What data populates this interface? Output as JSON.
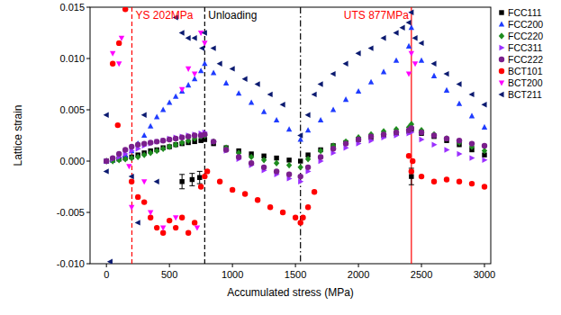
{
  "chart_data": {
    "type": "scatter",
    "x_label": "Accumulated stress (MPa)",
    "y_label": "Lattice strain",
    "xlim": [
      -130,
      3050
    ],
    "ylim": [
      -0.01,
      0.015
    ],
    "xticks": [
      0,
      500,
      1000,
      1500,
      2000,
      2500,
      3000
    ],
    "yticks": [
      {
        "value": -0.01,
        "label": "-0.010"
      },
      -0.005,
      {
        "value": 0,
        "label": "0.000"
      },
      0.005,
      {
        "value": 0.01,
        "label": "0.010"
      },
      0.015
    ],
    "grid": false,
    "legend": "right",
    "annotations": [
      {
        "text": "YS 202MPa",
        "x": 202,
        "color": "#ff0000",
        "line_style": "dashed"
      },
      {
        "text": "Unloading",
        "x": 780,
        "color": "#000000",
        "line_style": "dashed"
      },
      {
        "x": 1540,
        "color": "#000000",
        "line_style": "dashdot"
      },
      {
        "text": "UTS 877MPa",
        "x": 2420,
        "color": "#ff0000",
        "line_style": "solid"
      }
    ],
    "series": [
      {
        "name": "FCC111",
        "color": "#000000",
        "marker": "square",
        "x": [
          600,
          680,
          740,
          2420,
          0,
          50,
          100,
          150,
          200,
          250,
          300,
          350,
          400,
          450,
          500,
          550,
          600,
          650,
          700,
          750,
          780,
          850,
          950,
          1050,
          1150,
          1250,
          1350,
          1450,
          1540,
          1600,
          1700,
          1800,
          1900,
          2000,
          2100,
          2200,
          2300,
          2400,
          2420,
          2500,
          2600,
          2700,
          2800,
          2900,
          3000
        ],
        "values": [
          -0.002,
          -0.0018,
          -0.0016,
          -0.0015,
          0,
          0.0001,
          0.0002,
          0.0003,
          0.0004,
          0.0006,
          0.0008,
          0.001,
          0.0011,
          0.0013,
          0.0014,
          0.0016,
          0.0017,
          0.0018,
          0.0019,
          0.002,
          0.0021,
          0.0017,
          0.0013,
          0.001,
          0.0007,
          0.0005,
          0.0003,
          0.0001,
          0,
          0.0006,
          0.0011,
          0.0015,
          0.0018,
          0.0021,
          0.0023,
          0.0025,
          0.0027,
          0.0029,
          0.0031,
          0.0027,
          0.0024,
          0.002,
          0.0016,
          0.0011,
          0.0006
        ],
        "errors": [
          0.0007,
          0.0006,
          0.0006,
          0.0008,
          null,
          null,
          null,
          null,
          null,
          null,
          null,
          null,
          null,
          null,
          null,
          null,
          null,
          null,
          null,
          null,
          null,
          null,
          null,
          null,
          null,
          null,
          null,
          null,
          null,
          null,
          null,
          null,
          null,
          null,
          null,
          null,
          null,
          null,
          null,
          null,
          null,
          null,
          null,
          null,
          null
        ]
      },
      {
        "name": "FCC200",
        "color": "#1f3cff",
        "marker": "triangle-up",
        "x": [
          0,
          50,
          100,
          150,
          200,
          250,
          300,
          350,
          400,
          450,
          500,
          550,
          600,
          650,
          700,
          750,
          780,
          850,
          950,
          1050,
          1150,
          1250,
          1350,
          1450,
          1540,
          1600,
          1700,
          1800,
          1900,
          2000,
          2100,
          2200,
          2300,
          2400,
          2420,
          2500,
          2600,
          2700,
          2800,
          2900,
          3000
        ],
        "values": [
          0,
          0.0001,
          0.0003,
          0.0006,
          0.001,
          0.0017,
          0.0025,
          0.0034,
          0.0043,
          0.005,
          0.0057,
          0.0063,
          0.0068,
          0.0074,
          0.008,
          0.0088,
          0.0095,
          0.0086,
          0.0076,
          0.0066,
          0.0057,
          0.0048,
          0.004,
          0.0031,
          0.0021,
          0.003,
          0.004,
          0.005,
          0.006,
          0.0068,
          0.0077,
          0.0087,
          0.0098,
          0.0112,
          0.013,
          0.0098,
          0.0083,
          0.0069,
          0.0056,
          0.0044,
          0.0033
        ]
      },
      {
        "name": "FCC220",
        "color": "#1e8c1e",
        "marker": "diamond",
        "x": [
          0,
          50,
          100,
          150,
          200,
          250,
          300,
          350,
          400,
          450,
          500,
          550,
          600,
          650,
          700,
          750,
          780,
          850,
          950,
          1050,
          1150,
          1250,
          1350,
          1450,
          1540,
          1600,
          1700,
          1800,
          1900,
          2000,
          2100,
          2200,
          2300,
          2400,
          2420,
          2500,
          2600,
          2700,
          2800,
          2900,
          3000
        ],
        "values": [
          0,
          0,
          0.0001,
          0.0002,
          0.0003,
          0.0004,
          0.0006,
          0.0008,
          0.001,
          0.0012,
          0.0014,
          0.0016,
          0.0018,
          0.002,
          0.0022,
          0.0024,
          0.0025,
          0.0019,
          0.0013,
          0.0008,
          0.0004,
          0.0001,
          -0.0002,
          -0.0004,
          -0.0006,
          0.0002,
          0.001,
          0.0015,
          0.0019,
          0.0023,
          0.0026,
          0.0029,
          0.0031,
          0.0033,
          0.0036,
          0.003,
          0.0026,
          0.0022,
          0.0018,
          0.0014,
          0.001
        ]
      },
      {
        "name": "FCC311",
        "color": "#9b30ff",
        "marker": "triangle-right",
        "x": [
          0,
          50,
          100,
          150,
          200,
          250,
          300,
          350,
          400,
          450,
          500,
          550,
          600,
          650,
          700,
          750,
          780,
          850,
          950,
          1050,
          1150,
          1250,
          1350,
          1450,
          1540,
          1600,
          1700,
          1800,
          1900,
          2000,
          2100,
          2200,
          2300,
          2400,
          2420,
          2500,
          2600,
          2700,
          2800,
          2900,
          3000
        ],
        "values": [
          0,
          0.0002,
          0.0004,
          0.0007,
          0.001,
          0.0012,
          0.0015,
          0.0017,
          0.0019,
          0.002,
          0.0022,
          0.0023,
          0.0024,
          0.0025,
          0.0026,
          0.0027,
          0.0028,
          0.0019,
          0.001,
          0.0002,
          -0.0004,
          -0.0009,
          -0.0013,
          -0.0017,
          -0.002,
          -0.001,
          0,
          0.0008,
          0.0013,
          0.0017,
          0.002,
          0.0023,
          0.0025,
          0.0027,
          0.0028,
          0.0021,
          0.0016,
          0.0011,
          0.0007,
          0.0003,
          0.0001
        ]
      },
      {
        "name": "FCC222",
        "color": "#7a1f8c",
        "marker": "circle",
        "x": [
          0,
          50,
          100,
          150,
          200,
          250,
          300,
          350,
          400,
          450,
          500,
          550,
          600,
          650,
          700,
          750,
          780,
          850,
          950,
          1050,
          1150,
          1250,
          1350,
          1450,
          1540,
          1600,
          1700,
          1800,
          1900,
          2000,
          2100,
          2200,
          2300,
          2400,
          2420,
          2500,
          2600,
          2700,
          2800,
          2900,
          3000
        ],
        "values": [
          0,
          0.0003,
          0.0007,
          0.0011,
          0.0014,
          0.0016,
          0.0017,
          0.0018,
          0.0019,
          0.002,
          0.0021,
          0.0022,
          0.0023,
          0.0024,
          0.0025,
          0.0025,
          0.0026,
          0.0019,
          0.0011,
          0.0004,
          -0.0002,
          -0.0006,
          -0.001,
          -0.0013,
          -0.0015,
          -0.0006,
          0.0004,
          0.0012,
          0.0017,
          0.0021,
          0.0024,
          0.0026,
          0.0028,
          0.003,
          0.0032,
          0.0028,
          0.0025,
          0.0022,
          0.002,
          0.0017,
          0.0015
        ]
      },
      {
        "name": "BCT101",
        "color": "#ff0000",
        "marker": "circle",
        "x": [
          50,
          90,
          100,
          150,
          200,
          250,
          300,
          350,
          400,
          450,
          500,
          550,
          600,
          650,
          700,
          750,
          780,
          800,
          900,
          1000,
          1100,
          1200,
          1300,
          1400,
          1500,
          1540,
          1560,
          1600,
          1650,
          2400,
          2420,
          2430,
          2500,
          2600,
          2700,
          2800,
          2900,
          3000
        ],
        "values": [
          0.0095,
          0.0035,
          0.0115,
          0.0148,
          -0.002,
          -0.0035,
          -0.004,
          -0.0055,
          -0.0065,
          -0.007,
          -0.0058,
          -0.0065,
          -0.0055,
          -0.007,
          -0.006,
          -0.0025,
          -0.0015,
          -0.001,
          -0.002,
          -0.0028,
          -0.0032,
          -0.0038,
          -0.0045,
          -0.005,
          -0.0055,
          -0.006,
          -0.0055,
          -0.0045,
          -0.003,
          0.0005,
          -0.001,
          0,
          -0.0015,
          -0.002,
          -0.0018,
          -0.002,
          -0.0022,
          -0.0025
        ]
      },
      {
        "name": "BCT200",
        "color": "#ff00ff",
        "marker": "triangle-down",
        "x": [
          50,
          100,
          120,
          180,
          200,
          300,
          350,
          450,
          550,
          600,
          650,
          700,
          720,
          750,
          780,
          2400,
          2420,
          2450
        ],
        "values": [
          0.0105,
          0.0095,
          0.012,
          -0.0005,
          -0.0045,
          -0.002,
          -0.005,
          -0.0065,
          -0.0055,
          0.007,
          0.009,
          0.0085,
          -0.0065,
          0.0125,
          0.0115,
          0.0085,
          0.0105,
          0.0095
        ]
      },
      {
        "name": "BCT211",
        "color": "#0b1a70",
        "marker": "triangle-left",
        "x": [
          0,
          0,
          30,
          200,
          250,
          300,
          400,
          550,
          600,
          650,
          700,
          760,
          780,
          850,
          900,
          1000,
          1100,
          1200,
          1300,
          1400,
          1540,
          1600,
          1650,
          1700,
          1800,
          1900,
          2000,
          2100,
          2200,
          2300,
          2350,
          2400,
          2420,
          2450,
          2500,
          2600,
          2700,
          2800,
          2900,
          3000
        ],
        "values": [
          0.0045,
          -0.001,
          -0.0098,
          -0.0015,
          -0.006,
          0.0045,
          -0.002,
          0.014,
          0.0125,
          0.012,
          0.012,
          0.011,
          0.0125,
          0.011,
          0.0095,
          0.009,
          0.008,
          0.0075,
          0.0065,
          0.0055,
          0.0025,
          0.0045,
          0.0065,
          0.0075,
          0.0085,
          0.0095,
          0.0105,
          0.011,
          0.012,
          0.0125,
          0.013,
          0.0135,
          0.0145,
          0.012,
          0.0115,
          0.0095,
          0.0085,
          0.0075,
          0.0065,
          0.0055
        ]
      }
    ]
  }
}
